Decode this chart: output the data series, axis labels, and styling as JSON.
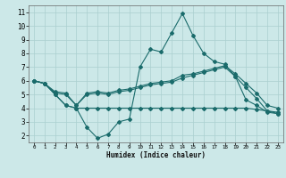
{
  "xlabel": "Humidex (Indice chaleur)",
  "xlim": [
    -0.5,
    23.5
  ],
  "ylim": [
    1.5,
    11.5
  ],
  "yticks": [
    2,
    3,
    4,
    5,
    6,
    7,
    8,
    9,
    10,
    11
  ],
  "xticks": [
    0,
    1,
    2,
    3,
    4,
    5,
    6,
    7,
    8,
    9,
    10,
    11,
    12,
    13,
    14,
    15,
    16,
    17,
    18,
    19,
    20,
    21,
    22,
    23
  ],
  "bg_color": "#cce8e8",
  "line_color": "#1a6b6b",
  "grid_color": "#aacfcf",
  "line1_x": [
    0,
    1,
    2,
    3,
    4,
    5,
    6,
    7,
    8,
    9,
    10,
    11,
    12,
    13,
    14,
    15,
    16,
    17,
    18,
    19,
    20,
    21,
    22,
    23
  ],
  "line1_y": [
    6.0,
    5.8,
    5.0,
    4.2,
    4.0,
    2.6,
    1.8,
    2.1,
    3.0,
    3.2,
    7.0,
    8.3,
    8.1,
    9.5,
    10.9,
    9.3,
    8.0,
    7.4,
    7.2,
    6.3,
    4.6,
    4.2,
    3.7,
    3.6
  ],
  "line2_x": [
    0,
    1,
    2,
    3,
    4,
    5,
    6,
    7,
    8,
    9,
    10,
    11,
    12,
    13,
    14,
    15,
    16,
    17,
    18,
    19,
    20,
    21,
    22,
    23
  ],
  "line2_y": [
    6.0,
    5.8,
    5.1,
    5.0,
    4.2,
    5.0,
    5.1,
    5.0,
    5.2,
    5.3,
    5.5,
    5.7,
    5.8,
    5.9,
    6.2,
    6.4,
    6.6,
    6.8,
    7.0,
    6.3,
    5.5,
    4.7,
    3.8,
    3.7
  ],
  "line3_x": [
    0,
    1,
    2,
    3,
    4,
    5,
    6,
    7,
    8,
    9,
    10,
    11,
    12,
    13,
    14,
    15,
    16,
    17,
    18,
    19,
    20,
    21,
    22,
    23
  ],
  "line3_y": [
    6.0,
    5.8,
    5.2,
    5.1,
    4.2,
    5.1,
    5.2,
    5.1,
    5.3,
    5.4,
    5.6,
    5.8,
    5.9,
    6.0,
    6.4,
    6.5,
    6.7,
    6.9,
    7.1,
    6.5,
    5.8,
    5.1,
    4.2,
    4.0
  ],
  "line4_x": [
    0,
    1,
    2,
    3,
    4,
    5,
    6,
    7,
    8,
    9,
    10,
    11,
    12,
    13,
    14,
    15,
    16,
    17,
    18,
    19,
    20,
    21,
    22,
    23
  ],
  "line4_y": [
    6.0,
    5.8,
    5.0,
    4.2,
    4.0,
    4.0,
    4.0,
    4.0,
    4.0,
    4.0,
    4.0,
    4.0,
    4.0,
    4.0,
    4.0,
    4.0,
    4.0,
    4.0,
    4.0,
    4.0,
    4.0,
    3.9,
    3.8,
    3.6
  ]
}
